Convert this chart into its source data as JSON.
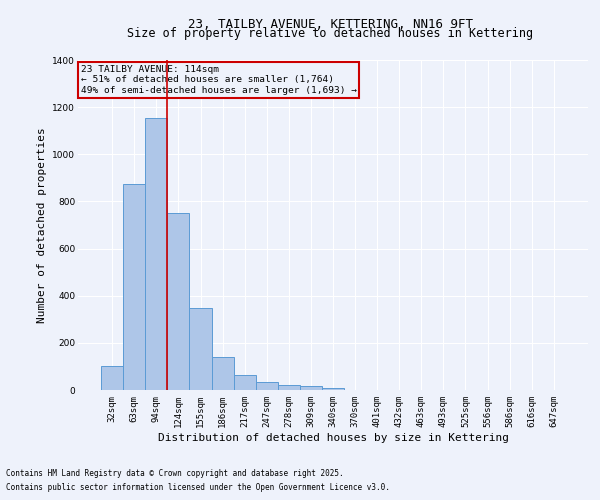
{
  "title_line1": "23, TAILBY AVENUE, KETTERING, NN16 9FT",
  "title_line2": "Size of property relative to detached houses in Kettering",
  "xlabel": "Distribution of detached houses by size in Kettering",
  "ylabel": "Number of detached properties",
  "bar_color": "#aec6e8",
  "bar_edge_color": "#5b9bd5",
  "categories": [
    "32sqm",
    "63sqm",
    "94sqm",
    "124sqm",
    "155sqm",
    "186sqm",
    "217sqm",
    "247sqm",
    "278sqm",
    "309sqm",
    "340sqm",
    "370sqm",
    "401sqm",
    "432sqm",
    "463sqm",
    "493sqm",
    "525sqm",
    "556sqm",
    "586sqm",
    "616sqm",
    "647sqm"
  ],
  "values": [
    100,
    875,
    1155,
    750,
    350,
    140,
    65,
    35,
    20,
    15,
    10,
    0,
    0,
    0,
    0,
    0,
    0,
    0,
    0,
    0,
    0
  ],
  "ylim": [
    0,
    1400
  ],
  "yticks": [
    0,
    200,
    400,
    600,
    800,
    1000,
    1200,
    1400
  ],
  "property_line_x": 2.5,
  "annotation_title": "23 TAILBY AVENUE: 114sqm",
  "annotation_line2": "← 51% of detached houses are smaller (1,764)",
  "annotation_line3": "49% of semi-detached houses are larger (1,693) →",
  "annotation_box_color": "#cc0000",
  "footnote1": "Contains HM Land Registry data © Crown copyright and database right 2025.",
  "footnote2": "Contains public sector information licensed under the Open Government Licence v3.0.",
  "bg_color": "#eef2fb",
  "grid_color": "#ffffff",
  "title_fontsize": 9,
  "subtitle_fontsize": 8.5,
  "tick_fontsize": 6.5,
  "ylabel_fontsize": 8,
  "xlabel_fontsize": 8,
  "annotation_fontsize": 6.8,
  "footnote_fontsize": 5.5
}
